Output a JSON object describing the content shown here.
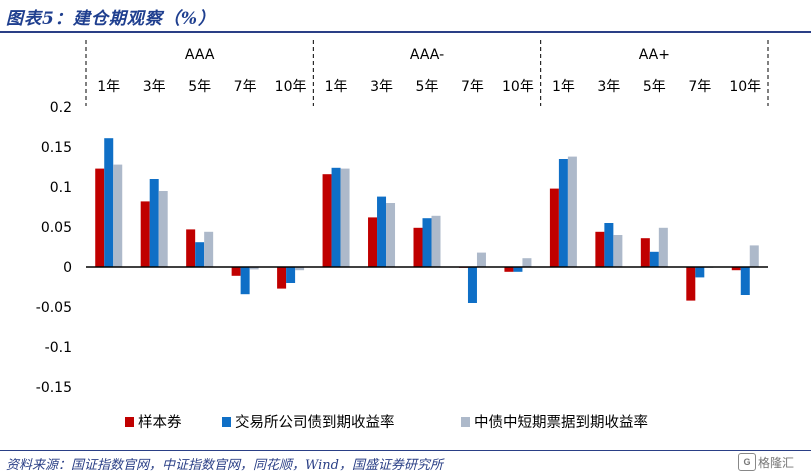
{
  "title": "图表5：建仓期观察（%）",
  "source": "资料来源：国证指数官网，中证指数官网，同花顺，Wind，国盛证券研究所",
  "watermark": "格隆汇",
  "colors": {
    "title": "#1f3f8f",
    "series": [
      "#c00000",
      "#0f6fc6",
      "#adb9ca"
    ]
  },
  "chart_data": {
    "type": "bar",
    "groups": [
      "AAA",
      "AAA-",
      "AA+"
    ],
    "terms": [
      "1年",
      "3年",
      "5年",
      "7年",
      "10年"
    ],
    "categories": [
      "AAA 1年",
      "AAA 3年",
      "AAA 5年",
      "AAA 7年",
      "AAA 10年",
      "AAA- 1年",
      "AAA- 3年",
      "AAA- 5年",
      "AAA- 7年",
      "AAA- 10年",
      "AA+ 1年",
      "AA+ 3年",
      "AA+ 5年",
      "AA+ 7年",
      "AA+ 10年"
    ],
    "series": [
      {
        "name": "样本券",
        "values": [
          0.123,
          0.082,
          0.047,
          -0.011,
          -0.027,
          0.116,
          0.062,
          0.049,
          -0.001,
          -0.006,
          0.098,
          0.044,
          0.036,
          -0.042,
          -0.004
        ]
      },
      {
        "name": "交易所公司债到期收益率",
        "values": [
          0.161,
          0.11,
          0.031,
          -0.034,
          -0.02,
          0.124,
          0.088,
          0.061,
          -0.045,
          -0.006,
          0.135,
          0.055,
          0.019,
          -0.013,
          -0.035
        ]
      },
      {
        "name": "中债中短期票据到期收益率",
        "values": [
          0.128,
          0.095,
          0.044,
          -0.003,
          -0.004,
          0.123,
          0.08,
          0.064,
          0.018,
          0.011,
          0.138,
          0.04,
          0.049,
          -0.001,
          0.027
        ]
      }
    ],
    "ylim": [
      -0.15,
      0.2
    ],
    "yticks": [
      -0.15,
      -0.1,
      -0.05,
      0,
      0.05,
      0.1,
      0.15,
      0.2
    ],
    "ytick_labels": [
      "-0.15",
      "-0.1",
      "-0.05",
      "0",
      "0.05",
      "0.1",
      "0.15",
      "0.2"
    ],
    "xlabel": "",
    "ylabel": "",
    "grid": false,
    "legend_position": "bottom"
  }
}
